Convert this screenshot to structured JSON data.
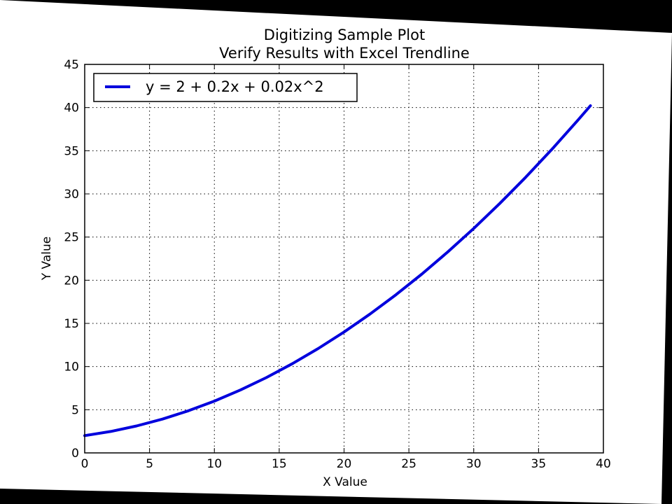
{
  "chart_data": {
    "type": "line",
    "title": "Digitizing Sample Plot",
    "subtitle": "Verify Results with Excel Trendline",
    "xlabel": "X Value",
    "ylabel": "Y Value",
    "xlim": [
      0,
      40
    ],
    "ylim": [
      0,
      45
    ],
    "xticks": [
      "0",
      "5",
      "10",
      "15",
      "20",
      "25",
      "30",
      "35",
      "40"
    ],
    "yticks": [
      "0",
      "5",
      "10",
      "15",
      "20",
      "25",
      "30",
      "35",
      "40",
      "45"
    ],
    "grid": true,
    "legend_position": "top-left",
    "series": [
      {
        "name": "y = 2 + 0.2x + 0.02x^2",
        "color": "#0000dd",
        "x": [
          0,
          2,
          4,
          6,
          8,
          10,
          12,
          14,
          16,
          18,
          20,
          22,
          24,
          26,
          28,
          30,
          32,
          34,
          36,
          38,
          39
        ],
        "y": [
          2.0,
          2.48,
          3.12,
          3.92,
          4.88,
          6.0,
          7.28,
          8.72,
          10.32,
          12.08,
          14.0,
          16.08,
          18.32,
          20.72,
          23.28,
          26.0,
          28.88,
          31.92,
          35.12,
          38.48,
          40.22
        ]
      }
    ]
  }
}
